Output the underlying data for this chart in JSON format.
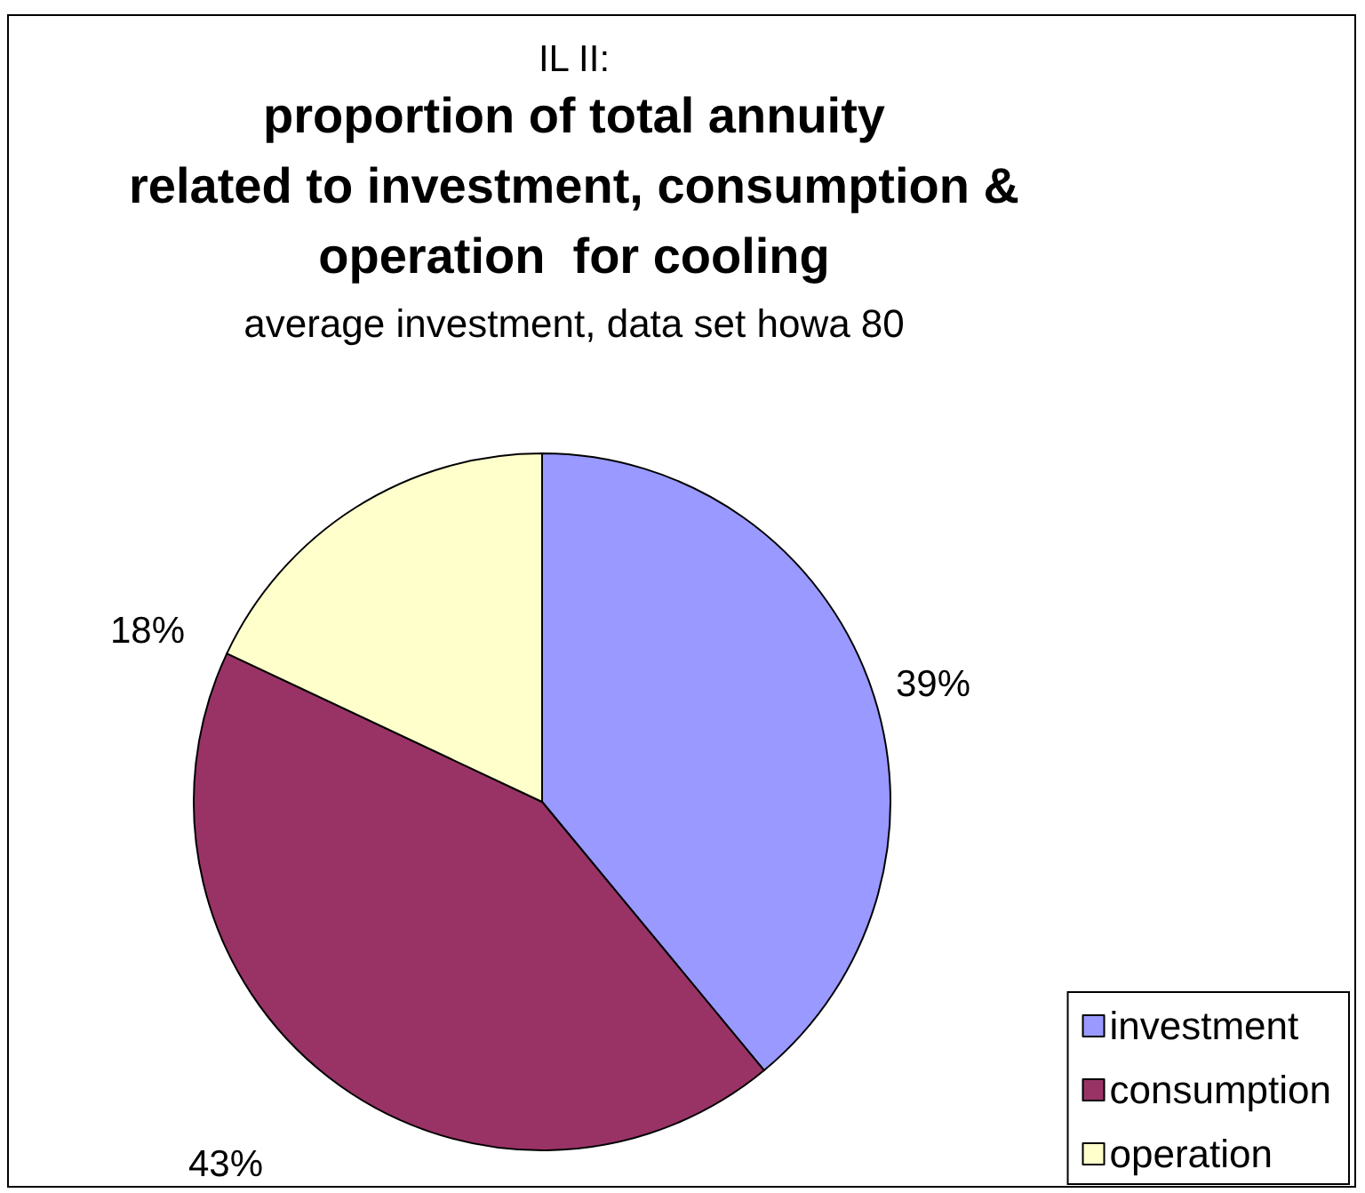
{
  "chart_data": {
    "type": "pie",
    "title": "proportion of total annuity\nrelated to investment, consumption &\noperation  for cooling",
    "subtitle": "average investment, data set howa 80",
    "annotations": [
      "IL II:"
    ],
    "categories": [
      "investment",
      "consumption",
      "operation"
    ],
    "values": [
      39,
      43,
      18
    ],
    "colors": [
      "#9999ff",
      "#993366",
      "#ffffcc"
    ],
    "value_labels": [
      "39%",
      "43%",
      "18%"
    ],
    "legend": "bottom right"
  }
}
